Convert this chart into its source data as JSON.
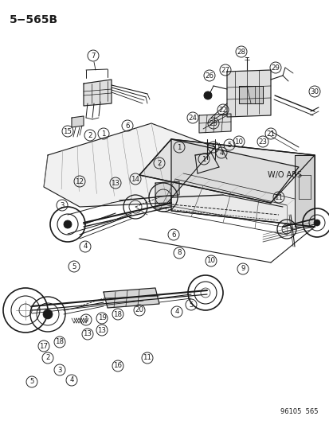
{
  "title": "5−565B",
  "subtitle_code": "96105  565",
  "wo_abs_text": "W/O ABS",
  "background_color": "#ffffff",
  "line_color": "#1a1a1a",
  "text_color": "#1a1a1a",
  "title_fontsize": 10,
  "annotation_fontsize": 6.5,
  "figsize": [
    4.14,
    5.33
  ],
  "dpi": 100
}
